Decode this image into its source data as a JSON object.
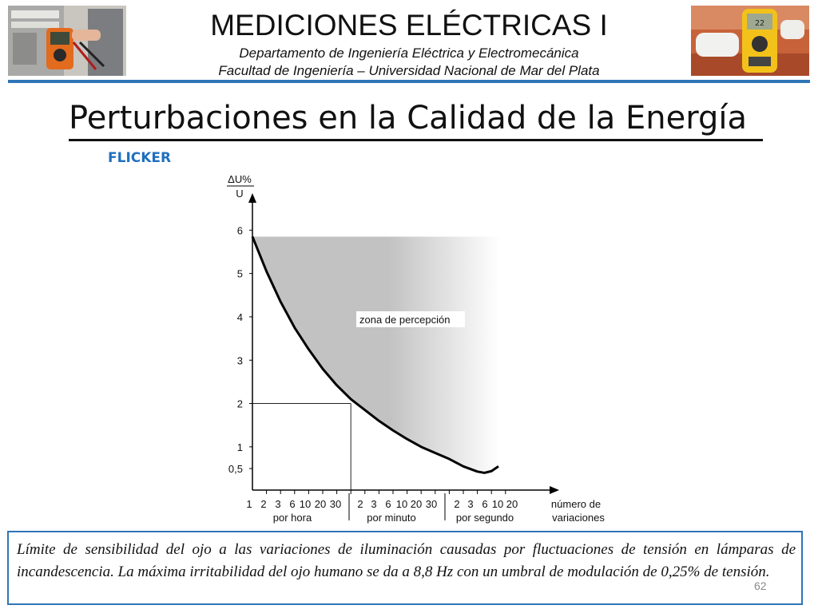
{
  "header": {
    "course_title": "MEDICIONES ELÉCTRICAS I",
    "department": "Departamento de Ingeniería Eléctrica y Electromecánica",
    "faculty": "Facultad de Ingeniería – Universidad Nacional de Mar del Plata",
    "colors": {
      "accent": "#2e75b6"
    }
  },
  "slide": {
    "title": "Perturbaciones en la Calidad de la Energía",
    "section": "FLICKER",
    "caption": "Límite de sensibilidad del ojo a las variaciones de iluminación causadas por fluctuaciones de tensión en lámparas de incandescencia. La máxima irritabilidad del ojo humano se da a 8,8 Hz con un umbral de modulación de 0,25% de tensión.",
    "page_number": "62"
  },
  "chart_data": {
    "type": "area",
    "ylabel_top": "ΔU%",
    "ylabel_bottom": "U",
    "xlabel_line1": "número de",
    "xlabel_line2": "variaciones",
    "y_ticks": [
      "0,5",
      "1",
      "2",
      "3",
      "4",
      "5",
      "6"
    ],
    "y_tick_values": [
      0.5,
      1,
      2,
      3,
      4,
      5,
      6
    ],
    "ylim": [
      0,
      6.5
    ],
    "x_tick_labels": [
      "1",
      "2",
      "3",
      "6",
      "10",
      "20",
      "30",
      "2",
      "3",
      "6",
      "10",
      "20",
      "30",
      "2",
      "3",
      "6",
      "10",
      "20"
    ],
    "x_groups": [
      "por hora",
      "por minuto",
      "por segundo"
    ],
    "zone_label": "zona de percepción",
    "curve": [
      {
        "x": 0.0,
        "y": 5.85
      },
      {
        "x": 1.0,
        "y": 5.05
      },
      {
        "x": 2.0,
        "y": 4.35
      },
      {
        "x": 3.0,
        "y": 3.75
      },
      {
        "x": 4.0,
        "y": 3.25
      },
      {
        "x": 5.0,
        "y": 2.8
      },
      {
        "x": 6.0,
        "y": 2.42
      },
      {
        "x": 7.0,
        "y": 2.1
      },
      {
        "x": 8.0,
        "y": 1.85
      },
      {
        "x": 9.0,
        "y": 1.6
      },
      {
        "x": 10.0,
        "y": 1.38
      },
      {
        "x": 11.0,
        "y": 1.18
      },
      {
        "x": 12.0,
        "y": 1.0
      },
      {
        "x": 13.0,
        "y": 0.86
      },
      {
        "x": 14.0,
        "y": 0.72
      },
      {
        "x": 15.0,
        "y": 0.55
      },
      {
        "x": 16.0,
        "y": 0.43
      },
      {
        "x": 16.5,
        "y": 0.4
      },
      {
        "x": 17.0,
        "y": 0.44
      },
      {
        "x": 17.5,
        "y": 0.55
      }
    ],
    "zone_top_y": 5.85,
    "reference_point": {
      "x": 7.0,
      "y": 2.0
    },
    "colors": {
      "zone": "#c2c2c2",
      "curve": "#000000"
    }
  }
}
